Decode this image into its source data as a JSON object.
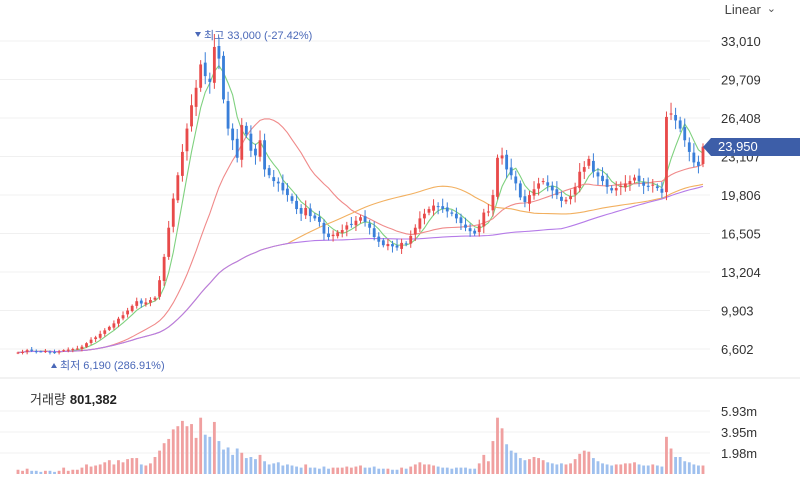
{
  "scale_selector": {
    "label": "Linear"
  },
  "volume_header": {
    "label": "거래량",
    "value": "801,382"
  },
  "chart_data": {
    "type": "candlestick",
    "price_axis": {
      "ticks": [
        "33,010",
        "29,709",
        "26,408",
        "23,107",
        "19,806",
        "16,505",
        "13,204",
        "9,903",
        "6,602"
      ],
      "range": [
        6602,
        33010
      ]
    },
    "current_price": {
      "label": "23,950",
      "value": 23950
    },
    "max_marker": {
      "label": "최고 33,000 (-27.42%)",
      "value": 33000
    },
    "min_marker": {
      "label": "최저 6,190 (286.91%)",
      "value": 6190
    },
    "volume_axis": {
      "ticks": [
        "5.93m",
        "3.95m",
        "1.98m"
      ],
      "values": [
        5.93,
        3.95,
        1.98
      ]
    },
    "colors": {
      "up": "#e84a4a",
      "down": "#3a7fd9",
      "ma5": "#7fd17f",
      "ma20": "#f08a8a",
      "ma60": "#f2b060",
      "ma120": "#b57be8",
      "badge": "#3d5ea8"
    },
    "close": [
      6300,
      6350,
      6500,
      6450,
      6400,
      6380,
      6420,
      6350,
      6300,
      6380,
      6500,
      6550,
      6600,
      6650,
      6800,
      7100,
      7400,
      7600,
      7900,
      8200,
      8500,
      8800,
      9200,
      9500,
      9900,
      10300,
      10700,
      10500,
      10600,
      10800,
      11000,
      12500,
      14500,
      17000,
      19500,
      21500,
      23500,
      25500,
      27500,
      29000,
      31000,
      30000,
      29500,
      32500,
      31500,
      28000,
      25500,
      24500,
      23000,
      25800,
      25000,
      23600,
      23200,
      24500,
      22000,
      21500,
      21000,
      20800,
      20200,
      19800,
      19300,
      18600,
      18200,
      18700,
      18000,
      17800,
      17500,
      16500,
      16200,
      16400,
      16600,
      16800,
      17200,
      17300,
      17600,
      17900,
      17500,
      17000,
      16200,
      15800,
      15500,
      15600,
      15400,
      15300,
      15700,
      15600,
      16300,
      17000,
      17800,
      18200,
      18600,
      18900,
      18800,
      18600,
      18400,
      18200,
      17800,
      17400,
      17000,
      16700,
      16500,
      17200,
      18300,
      18400,
      19800,
      23000,
      23200,
      22000,
      21500,
      20800,
      19600,
      19200,
      19800,
      20300,
      20800,
      21000,
      20600,
      20200,
      19800,
      19300,
      19400,
      19700,
      20500,
      21800,
      22200,
      22900,
      21800,
      21400,
      21000,
      20500,
      20200,
      20400,
      20600,
      20800,
      21000,
      21300,
      21000,
      20600,
      20500,
      20700,
      20400,
      20000,
      26500,
      26800,
      26200,
      25500,
      24500,
      23500,
      22600,
      22300,
      23950
    ],
    "volume": [
      0.4,
      0.3,
      0.5,
      0.3,
      0.3,
      0.2,
      0.3,
      0.3,
      0.2,
      0.3,
      0.6,
      0.3,
      0.4,
      0.4,
      0.6,
      0.9,
      0.7,
      0.8,
      0.9,
      1.1,
      1.3,
      0.9,
      1.3,
      1.1,
      1.4,
      1.5,
      1.5,
      0.9,
      0.8,
      1.0,
      1.6,
      2.2,
      2.9,
      3.3,
      4.2,
      4.5,
      5.0,
      4.5,
      4.7,
      3.4,
      5.3,
      3.7,
      3.5,
      4.9,
      3.1,
      2.3,
      2.5,
      1.8,
      2.4,
      2.0,
      1.5,
      1.6,
      1.4,
      1.8,
      1.2,
      0.9,
      1.0,
      1.1,
      0.8,
      0.9,
      0.8,
      0.7,
      0.6,
      0.9,
      0.6,
      0.6,
      0.5,
      0.7,
      0.5,
      0.6,
      0.6,
      0.6,
      0.7,
      0.6,
      0.7,
      0.8,
      0.6,
      0.6,
      0.7,
      0.5,
      0.5,
      0.5,
      0.4,
      0.4,
      0.6,
      0.5,
      0.7,
      0.9,
      1.1,
      0.9,
      0.9,
      0.8,
      0.7,
      0.6,
      0.6,
      0.5,
      0.6,
      0.6,
      0.6,
      0.5,
      0.5,
      1.0,
      1.8,
      1.2,
      3.1,
      5.3,
      4.3,
      2.8,
      2.2,
      2.0,
      1.5,
      1.3,
      1.4,
      1.6,
      1.5,
      1.3,
      1.1,
      1.0,
      0.9,
      1.0,
      0.9,
      1.0,
      1.4,
      1.9,
      2.2,
      2.1,
      1.5,
      1.2,
      1.0,
      0.9,
      0.8,
      0.9,
      0.9,
      1.0,
      1.0,
      1.1,
      0.9,
      0.8,
      0.8,
      0.9,
      0.8,
      0.7,
      3.5,
      2.4,
      1.6,
      1.6,
      1.2,
      1.1,
      0.9,
      0.8,
      0.8
    ]
  }
}
